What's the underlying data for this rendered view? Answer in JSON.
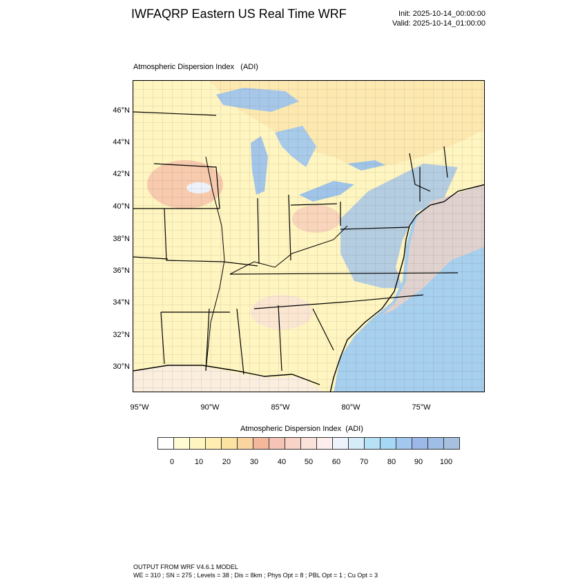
{
  "header": {
    "title": "IWFAQRP Eastern US Real Time WRF",
    "init": "Init: 2025-10-14_00:00:00",
    "valid": "Valid: 2025-10-14_01:00:00"
  },
  "map": {
    "title": "Atmospheric Dispersion Index   (ADI)",
    "lat_labels": [
      "46°N",
      "44°N",
      "42°N",
      "40°N",
      "38°N",
      "36°N",
      "34°N",
      "32°N",
      "30°N"
    ],
    "lon_labels": [
      "95°W",
      "90°W",
      "85°W",
      "80°W",
      "75°W"
    ],
    "colors": {
      "land_low": "#fff8c4",
      "land_mid": "#fce2a0",
      "warm": "#f5b79c",
      "water_light": "#bfe4f7",
      "water": "#a6c8e8",
      "great_lakes": "#9fc4e8"
    }
  },
  "colorbar": {
    "title": "Atmospheric Dispersion Index  (ADI)",
    "colors": [
      "#ffffff",
      "#fffbd2",
      "#fff5c0",
      "#ffeeb0",
      "#fde3a2",
      "#fbd5a0",
      "#f5b79c",
      "#f6c4b6",
      "#f8d3c8",
      "#fae2db",
      "#fbeeec",
      "#eef2fb",
      "#d6ecf8",
      "#b7e1f7",
      "#a6d8f5",
      "#a3c8ef",
      "#9bb8e9",
      "#9fbde5",
      "#a7c0df"
    ],
    "labels": [
      "0",
      "10",
      "20",
      "30",
      "40",
      "50",
      "60",
      "70",
      "80",
      "90",
      "100"
    ]
  },
  "footer": {
    "line1": "OUTPUT FROM WRF V4.6.1 MODEL",
    "line2": "WE = 310 ; SN = 275 ; Levels = 38 ; Dis = 8km ; Phys Opt = 8 ; PBL Opt = 1 ; Cu Opt = 3"
  }
}
